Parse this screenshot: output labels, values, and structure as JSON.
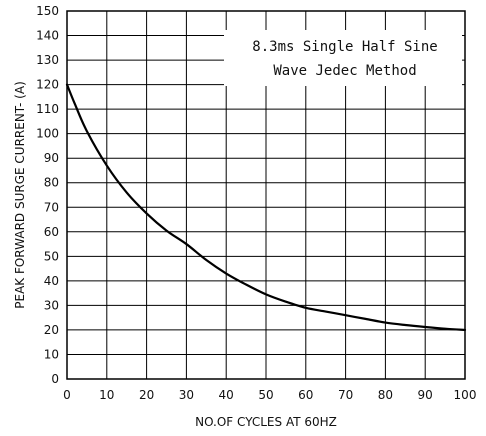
{
  "chart_data": {
    "type": "line",
    "title": "",
    "xlabel": "NO.OF CYCLES AT 60HZ",
    "ylabel": "PEAK FORWARD SURGE CURRENT- (A)",
    "xlim": [
      0,
      100
    ],
    "ylim": [
      0,
      150
    ],
    "xticks": [
      0,
      10,
      20,
      30,
      40,
      50,
      60,
      70,
      80,
      90,
      100
    ],
    "yticks": [
      0,
      10,
      20,
      30,
      40,
      50,
      60,
      70,
      80,
      90,
      100,
      110,
      120,
      130,
      140,
      150
    ],
    "grid": true,
    "annotation": [
      "8.3ms Single Half Sine",
      "Wave Jedec Method"
    ],
    "series": [
      {
        "x": [
          0,
          2,
          5,
          10,
          15,
          20,
          25,
          30,
          35,
          40,
          45,
          50,
          55,
          60,
          65,
          70,
          75,
          80,
          85,
          90,
          95,
          100
        ],
        "y": [
          120,
          112,
          101,
          87,
          76,
          67.5,
          60.5,
          55,
          48.5,
          43,
          38.5,
          34.5,
          31.5,
          29,
          27.5,
          26,
          24.5,
          23,
          22,
          21.2,
          20.5,
          20
        ]
      }
    ]
  }
}
